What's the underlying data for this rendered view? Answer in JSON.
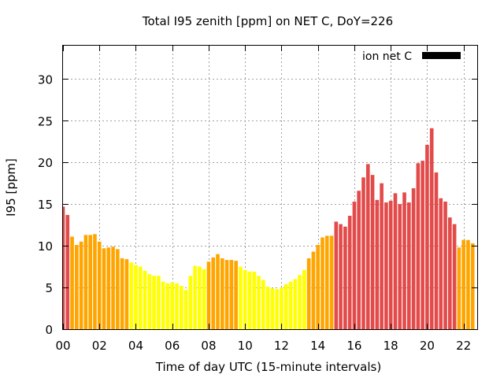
{
  "chart_data": {
    "type": "bar",
    "title": "Total I95 zenith [ppm] on NET C, DoY=226",
    "xlabel": "Time of day UTC (15-minute intervals)",
    "ylabel": "I95 [ppm]",
    "xlim": [
      0,
      22.75
    ],
    "ylim": [
      0,
      34
    ],
    "x_interval_hours": 0.25,
    "x_ticks": [
      0,
      2,
      4,
      6,
      8,
      10,
      12,
      14,
      16,
      18,
      20,
      22
    ],
    "x_tick_labels": [
      "00",
      "02",
      "04",
      "06",
      "08",
      "10",
      "12",
      "14",
      "16",
      "18",
      "20",
      "22"
    ],
    "y_ticks": [
      0,
      5,
      10,
      15,
      20,
      25,
      30
    ],
    "y_tick_labels": [
      "0",
      "5",
      "10",
      "15",
      "20",
      "25",
      "30"
    ],
    "grid": true,
    "legend": {
      "position": "top-right",
      "label": "ion net C",
      "swatch_color": "#000000"
    },
    "bar_colors": {
      "low": "#ffff00",
      "moderate": "#ffa500",
      "high": "#e34a4a"
    },
    "series": [
      {
        "values": [
          14.7,
          13.7,
          11.1,
          10.1,
          10.5,
          11.3,
          11.3,
          11.4,
          10.5,
          9.7,
          9.8,
          9.9,
          9.6,
          8.5,
          8.4,
          8.0,
          7.7,
          7.5,
          7.0,
          6.6,
          6.4,
          6.4,
          5.7,
          5.5,
          5.6,
          5.5,
          5.2,
          4.7,
          6.4,
          7.6,
          7.5,
          7.2,
          8.1,
          8.6,
          9.0,
          8.5,
          8.3,
          8.3,
          8.2,
          7.5,
          7.1,
          6.9,
          6.9,
          6.4,
          5.9,
          5.1,
          4.9,
          4.8,
          5.0,
          5.4,
          5.7,
          6.0,
          6.5,
          7.1,
          8.5,
          9.3,
          10.1,
          11.0,
          11.2,
          11.2,
          12.9,
          12.6,
          12.3,
          13.6,
          15.3,
          16.6,
          18.2,
          19.8,
          18.5,
          15.5,
          17.5,
          15.2,
          15.4,
          16.3,
          15.0,
          16.4,
          15.2,
          16.9,
          19.9,
          20.2,
          22.1,
          24.1,
          18.8,
          15.7,
          15.3,
          13.4,
          12.6,
          9.8,
          10.7,
          10.7,
          10.3
        ],
        "colors": [
          "#e34a4a",
          "#e34a4a",
          "#ffa500",
          "#ffa500",
          "#ffa500",
          "#ffa500",
          "#ffa500",
          "#ffa500",
          "#ffa500",
          "#ffa500",
          "#ffa500",
          "#ffa500",
          "#ffa500",
          "#ffa500",
          "#ffa500",
          "#ffff00",
          "#ffff00",
          "#ffff00",
          "#ffff00",
          "#ffff00",
          "#ffff00",
          "#ffff00",
          "#ffff00",
          "#ffff00",
          "#ffff00",
          "#ffff00",
          "#ffff00",
          "#ffff00",
          "#ffff00",
          "#ffff00",
          "#ffff00",
          "#ffff00",
          "#ffa500",
          "#ffa500",
          "#ffa500",
          "#ffa500",
          "#ffa500",
          "#ffa500",
          "#ffa500",
          "#ffff00",
          "#ffff00",
          "#ffff00",
          "#ffff00",
          "#ffff00",
          "#ffff00",
          "#ffff00",
          "#ffff00",
          "#ffff00",
          "#ffff00",
          "#ffff00",
          "#ffff00",
          "#ffff00",
          "#ffff00",
          "#ffff00",
          "#ffa500",
          "#ffa500",
          "#ffa500",
          "#ffa500",
          "#ffa500",
          "#ffa500",
          "#e34a4a",
          "#e34a4a",
          "#e34a4a",
          "#e34a4a",
          "#e34a4a",
          "#e34a4a",
          "#e34a4a",
          "#e34a4a",
          "#e34a4a",
          "#e34a4a",
          "#e34a4a",
          "#e34a4a",
          "#e34a4a",
          "#e34a4a",
          "#e34a4a",
          "#e34a4a",
          "#e34a4a",
          "#e34a4a",
          "#e34a4a",
          "#e34a4a",
          "#e34a4a",
          "#e34a4a",
          "#e34a4a",
          "#e34a4a",
          "#e34a4a",
          "#e34a4a",
          "#e34a4a",
          "#ffa500",
          "#ffa500",
          "#ffa500",
          "#ffa500"
        ]
      }
    ]
  }
}
